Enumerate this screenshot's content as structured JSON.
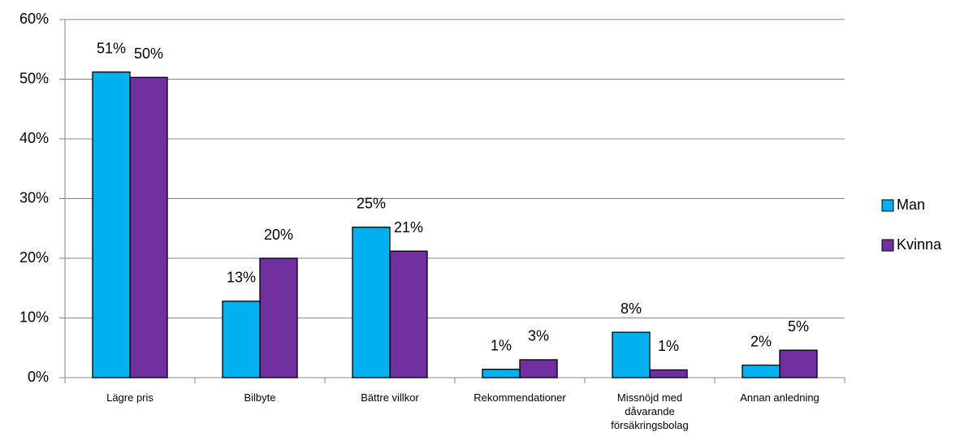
{
  "chart_data": {
    "type": "bar",
    "categories": [
      "Lägre pris",
      "Bilbyte",
      "Bättre villkor",
      "Rekommendationer",
      "Missnöjd med dåvarande försäkringsbolag",
      "Annan anledning"
    ],
    "series": [
      {
        "name": "Man",
        "color": "#00b0f0",
        "values": [
          51.2,
          12.8,
          25.2,
          1.4,
          7.6,
          2.1
        ],
        "value_labels": [
          "51%",
          "13%",
          "25%",
          "1%",
          "8%",
          "2%"
        ]
      },
      {
        "name": "Kvinna",
        "color": "#7030a0",
        "values": [
          50.3,
          20,
          21.2,
          3,
          1.3,
          4.6
        ],
        "value_labels": [
          "50%",
          "20%",
          "21%",
          "3%",
          "1%",
          "5%"
        ]
      }
    ],
    "ylim": [
      0,
      60
    ],
    "yticks": [
      {
        "value": 0,
        "label": "0%"
      },
      {
        "value": 10,
        "label": "10%"
      },
      {
        "value": 20,
        "label": "20%"
      },
      {
        "value": 30,
        "label": "30%"
      },
      {
        "value": 40,
        "label": "40%"
      },
      {
        "value": 50,
        "label": "50%"
      },
      {
        "value": 60,
        "label": "60%"
      }
    ],
    "grid": true,
    "legend": "right"
  }
}
